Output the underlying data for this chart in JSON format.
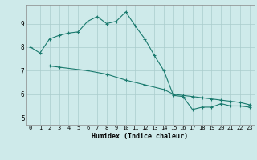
{
  "xlabel": "Humidex (Indice chaleur)",
  "background_color": "#ceeaea",
  "line_color": "#1a7a6e",
  "grid_color": "#aacccc",
  "xlim": [
    -0.5,
    23.5
  ],
  "ylim": [
    4.7,
    9.8
  ],
  "yticks": [
    5,
    6,
    7,
    8,
    9
  ],
  "xticks": [
    0,
    1,
    2,
    3,
    4,
    5,
    6,
    7,
    8,
    9,
    10,
    11,
    12,
    13,
    14,
    15,
    16,
    17,
    18,
    19,
    20,
    21,
    22,
    23
  ],
  "line1_x": [
    0,
    1,
    2,
    3,
    4,
    5,
    6,
    7,
    8,
    9,
    10,
    11,
    12,
    13,
    14,
    15,
    16,
    17,
    18,
    19,
    20,
    21,
    22,
    23
  ],
  "line1_y": [
    8.0,
    7.75,
    8.35,
    8.5,
    8.6,
    8.65,
    9.1,
    9.3,
    9.0,
    9.1,
    9.5,
    8.9,
    8.35,
    7.65,
    7.0,
    5.95,
    5.9,
    5.35,
    5.45,
    5.45,
    5.6,
    5.5,
    5.5,
    5.45
  ],
  "line2_x": [
    2,
    3,
    6,
    8,
    10,
    12,
    14,
    15,
    16,
    17,
    18,
    19,
    20,
    21,
    22,
    23
  ],
  "line2_y": [
    7.2,
    7.15,
    7.0,
    6.85,
    6.6,
    6.4,
    6.2,
    6.0,
    5.95,
    5.9,
    5.85,
    5.8,
    5.75,
    5.7,
    5.65,
    5.55
  ],
  "spine_color": "#888888",
  "tick_fontsize": 5,
  "xlabel_fontsize": 6
}
